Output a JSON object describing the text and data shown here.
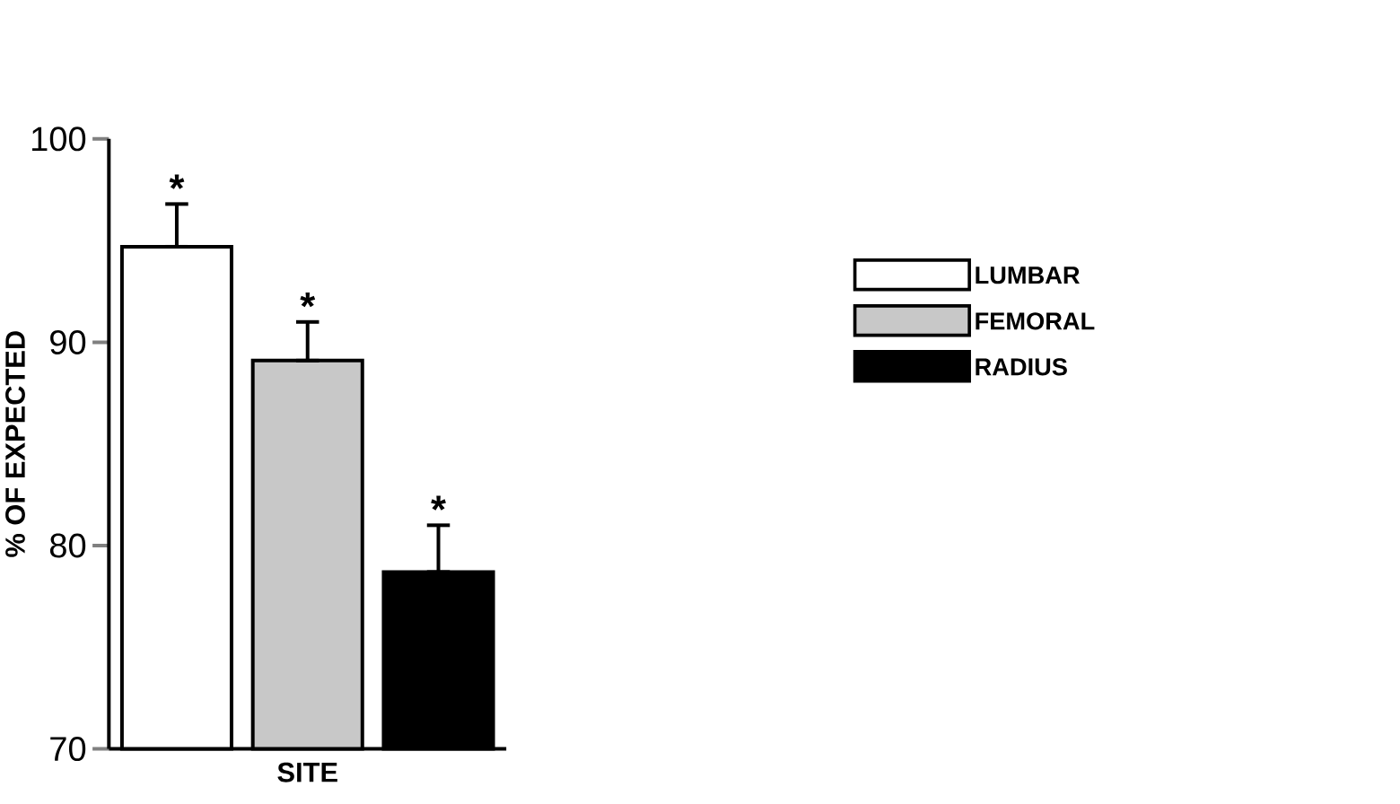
{
  "chart_data": {
    "type": "bar",
    "ylabel": "% OF EXPECTED",
    "xlabel": "SITE",
    "categories": [
      null
    ],
    "series": [
      {
        "name": "LUMBAR",
        "color": "#ffffff",
        "values": [
          94.7
        ],
        "errors": [
          [
            94.7,
            96.8
          ]
        ]
      },
      {
        "name": "FEMORAL",
        "color": "#c8c8c8",
        "values": [
          89.1
        ],
        "errors": [
          [
            89.1,
            91.0
          ]
        ]
      },
      {
        "name": "RADIUS",
        "color": "#000000",
        "values": [
          78.7
        ],
        "errors": [
          [
            78.7,
            81.0
          ]
        ]
      }
    ],
    "ylim": [
      70,
      100
    ],
    "yticks": [
      70,
      80,
      90,
      100
    ],
    "legend": "right",
    "annotations": [
      {
        "text": "*",
        "y": 96.8
      },
      {
        "text": "*",
        "y": 91.0
      },
      {
        "text": "*",
        "y": 81.0
      }
    ]
  }
}
